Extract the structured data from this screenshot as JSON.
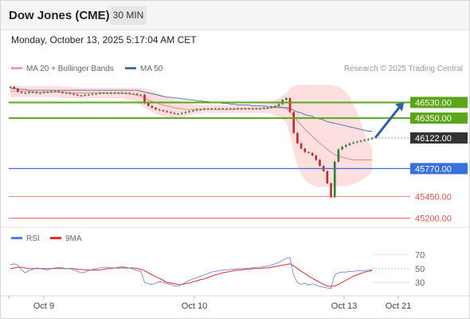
{
  "header": {
    "title": "Dow Jones (CME)",
    "timeframe": "30 MIN"
  },
  "datetime": "Monday, October 13, 2025 5:17:04 AM CET",
  "credit": "Research © 2025 Trading Central",
  "colors": {
    "price": "#555555",
    "bollinger": "#f7a0a0",
    "ma50": "#4e6fa8",
    "support_green": "#5aa519",
    "pivot_blue": "#3b6fe0",
    "resist_red": "#e85050",
    "rsi": "#5b7fd8",
    "rsi_ma": "#e52b2b",
    "up_candle": "#2e7d32",
    "down_candle": "#c62828"
  },
  "chart_data": [
    {
      "type": "line",
      "legend": [
        {
          "name": "MA 20 + Bollinger Bands",
          "color": "#f7a0a0"
        },
        {
          "name": "MA 50",
          "color": "#4e6fa8"
        }
      ],
      "x_ticks": [
        "Oct 9",
        "Oct 10",
        "Oct 13",
        "Oct 21"
      ],
      "ylim": [
        45150,
        46800
      ],
      "levels": [
        {
          "value": 46530,
          "label": "46530.00",
          "kind": "resistance",
          "color": "#5aa519"
        },
        {
          "value": 46350,
          "label": "46350.00",
          "kind": "resistance",
          "color": "#5aa519"
        },
        {
          "value": 46122,
          "label": "46122.00",
          "kind": "last-price",
          "color": "#444444"
        },
        {
          "value": 45770,
          "label": "45770.00",
          "kind": "pivot",
          "color": "#3b6fe0"
        },
        {
          "value": 45450,
          "label": "45450.00",
          "kind": "support",
          "color": "#e85050"
        },
        {
          "value": 45200,
          "label": "45200.00",
          "kind": "support",
          "color": "#e85050"
        }
      ],
      "series": [
        {
          "name": "Price",
          "values": [
            46710,
            46690,
            46650,
            46640,
            46640,
            46650,
            46650,
            46640,
            46640,
            46650,
            46650,
            46660,
            46660,
            46650,
            46640,
            46640,
            46630,
            46620,
            46610,
            46610,
            46620,
            46620,
            46630,
            46630,
            46640,
            46640,
            46640,
            46640,
            46640,
            46640,
            46640,
            46640,
            46630,
            46630,
            46620,
            46620,
            46520,
            46490,
            46470,
            46450,
            46440,
            46430,
            46420,
            46410,
            46400,
            46400,
            46410,
            46420,
            46430,
            46440,
            46450,
            46450,
            46460,
            46460,
            46460,
            46460,
            46460,
            46460,
            46460,
            46460,
            46460,
            46460,
            46460,
            46460,
            46460,
            46460,
            46460,
            46460,
            46470,
            46470,
            46480,
            46490,
            46510,
            46560,
            46580,
            46420,
            46180,
            46060,
            46000,
            45960,
            45950,
            45920,
            45870,
            45800,
            45740,
            45600,
            45440,
            45850,
            45990,
            46020,
            46040,
            46060,
            46070,
            46080,
            46090,
            46100,
            46110,
            46122
          ]
        },
        {
          "name": "MA 20",
          "values": [
            46660,
            46660,
            46660,
            46660,
            46660,
            46660,
            46650,
            46650,
            46650,
            46650,
            46650,
            46650,
            46650,
            46650,
            46650,
            46650,
            46640,
            46640,
            46640,
            46640,
            46640,
            46640,
            46640,
            46640,
            46640,
            46640,
            46640,
            46640,
            46640,
            46640,
            46640,
            46630,
            46630,
            46620,
            46610,
            46600,
            46580,
            46560,
            46540,
            46530,
            46510,
            46500,
            46490,
            46480,
            46470,
            46460,
            46460,
            46450,
            46450,
            46450,
            46450,
            46450,
            46450,
            46450,
            46450,
            46450,
            46450,
            46450,
            46450,
            46450,
            46450,
            46460,
            46460,
            46460,
            46460,
            46460,
            46460,
            46460,
            46460,
            46460,
            46470,
            46470,
            46470,
            46470,
            46460,
            46420,
            46370,
            46320,
            46270,
            46220,
            46180,
            46140,
            46100,
            46060,
            46030,
            45990,
            45960,
            45930,
            45910,
            45900,
            45890,
            45880,
            45870,
            45870,
            45870,
            45870,
            45870,
            45870
          ]
        },
        {
          "name": "Bollinger Upper",
          "values": [
            46720,
            46720,
            46720,
            46720,
            46720,
            46720,
            46720,
            46720,
            46720,
            46720,
            46720,
            46720,
            46720,
            46720,
            46710,
            46710,
            46710,
            46700,
            46700,
            46700,
            46700,
            46700,
            46700,
            46700,
            46700,
            46700,
            46700,
            46700,
            46700,
            46700,
            46700,
            46700,
            46700,
            46700,
            46700,
            46700,
            46690,
            46680,
            46670,
            46650,
            46630,
            46610,
            46590,
            46580,
            46560,
            46550,
            46540,
            46530,
            46520,
            46510,
            46510,
            46500,
            46500,
            46500,
            46500,
            46500,
            46500,
            46500,
            46500,
            46500,
            46500,
            46510,
            46510,
            46510,
            46510,
            46510,
            46510,
            46510,
            46510,
            46520,
            46540,
            46560,
            46580,
            46610,
            46640,
            46690,
            46720,
            46730,
            46730,
            46730,
            46730,
            46730,
            46730,
            46730,
            46730,
            46730,
            46730,
            46720,
            46710,
            46690,
            46650,
            46590,
            46520,
            46420,
            46300,
            46180,
            46080,
            46000
          ]
        },
        {
          "name": "Bollinger Lower",
          "values": [
            46590,
            46590,
            46590,
            46590,
            46590,
            46590,
            46590,
            46590,
            46590,
            46590,
            46590,
            46590,
            46590,
            46590,
            46580,
            46580,
            46580,
            46580,
            46580,
            46580,
            46580,
            46580,
            46580,
            46580,
            46580,
            46580,
            46580,
            46580,
            46580,
            46580,
            46580,
            46570,
            46560,
            46550,
            46530,
            46500,
            46470,
            46440,
            46420,
            46400,
            46380,
            46370,
            46360,
            46350,
            46350,
            46350,
            46360,
            46370,
            46380,
            46390,
            46400,
            46400,
            46410,
            46410,
            46410,
            46410,
            46410,
            46410,
            46410,
            46410,
            46410,
            46410,
            46410,
            46410,
            46410,
            46410,
            46410,
            46410,
            46410,
            46400,
            46400,
            46380,
            46360,
            46340,
            46300,
            46150,
            45950,
            45800,
            45700,
            45640,
            45600,
            45580,
            45560,
            45560,
            45560,
            45560,
            45560,
            45560,
            45570,
            45570,
            45570,
            45580,
            45590,
            45610,
            45630,
            45660,
            45690,
            45730
          ]
        },
        {
          "name": "MA 50",
          "values": [
            46690,
            46690,
            46680,
            46680,
            46680,
            46670,
            46670,
            46670,
            46670,
            46670,
            46670,
            46670,
            46670,
            46670,
            46670,
            46670,
            46670,
            46670,
            46670,
            46670,
            46670,
            46670,
            46670,
            46670,
            46670,
            46670,
            46670,
            46670,
            46670,
            46670,
            46670,
            46670,
            46670,
            46670,
            46670,
            46660,
            46650,
            46640,
            46630,
            46620,
            46610,
            46600,
            46590,
            46590,
            46580,
            46580,
            46570,
            46570,
            46560,
            46560,
            46550,
            46550,
            46540,
            46540,
            46530,
            46530,
            46530,
            46520,
            46520,
            46510,
            46510,
            46500,
            46500,
            46500,
            46500,
            46490,
            46490,
            46490,
            46490,
            46480,
            46480,
            46480,
            46480,
            46470,
            46470,
            46460,
            46440,
            46420,
            46410,
            46390,
            46380,
            46370,
            46350,
            46340,
            46330,
            46310,
            46300,
            46290,
            46280,
            46270,
            46260,
            46250,
            46240,
            46230,
            46220,
            46210,
            46200,
            46200
          ]
        }
      ]
    },
    {
      "type": "line",
      "legend": [
        {
          "name": "RSI",
          "color": "#5b7fd8"
        },
        {
          "name": "9MA",
          "color": "#e52b2b"
        }
      ],
      "ylim": [
        15,
        80
      ],
      "y_ticks": [
        70,
        50,
        30
      ],
      "series": [
        {
          "name": "RSI",
          "values": [
            56,
            57,
            55,
            48,
            44,
            47,
            49,
            51,
            50,
            49,
            48,
            50,
            51,
            52,
            51,
            50,
            50,
            48,
            46,
            44,
            45,
            47,
            49,
            50,
            51,
            52,
            52,
            51,
            51,
            52,
            53,
            52,
            51,
            49,
            47,
            46,
            30,
            28,
            27,
            29,
            31,
            30,
            28,
            27,
            25,
            24,
            27,
            30,
            33,
            35,
            37,
            39,
            41,
            43,
            45,
            46,
            47,
            48,
            48,
            49,
            49,
            50,
            50,
            50,
            51,
            51,
            52,
            52,
            53,
            54,
            55,
            57,
            59,
            62,
            65,
            66,
            40,
            30,
            27,
            29,
            26,
            28,
            26,
            24,
            23,
            22,
            21,
            41,
            44,
            45,
            45,
            46,
            46,
            47,
            47,
            47,
            48,
            48
          ]
        },
        {
          "name": "9MA",
          "values": [
            50,
            51,
            52,
            52,
            51,
            50,
            50,
            50,
            50,
            50,
            50,
            50,
            50,
            50,
            50,
            50,
            50,
            50,
            49,
            49,
            48,
            48,
            48,
            48,
            48,
            49,
            50,
            50,
            51,
            51,
            51,
            51,
            51,
            51,
            50,
            49,
            47,
            44,
            41,
            38,
            36,
            33,
            30,
            29,
            28,
            27,
            27,
            28,
            29,
            31,
            32,
            34,
            35,
            37,
            39,
            41,
            42,
            44,
            45,
            46,
            47,
            48,
            48,
            49,
            49,
            50,
            50,
            50,
            51,
            51,
            52,
            53,
            54,
            55,
            56,
            57,
            54,
            50,
            46,
            43,
            39,
            36,
            33,
            30,
            27,
            25,
            24,
            25,
            27,
            30,
            33,
            36,
            39,
            41,
            43,
            45,
            46,
            47
          ]
        }
      ]
    }
  ]
}
